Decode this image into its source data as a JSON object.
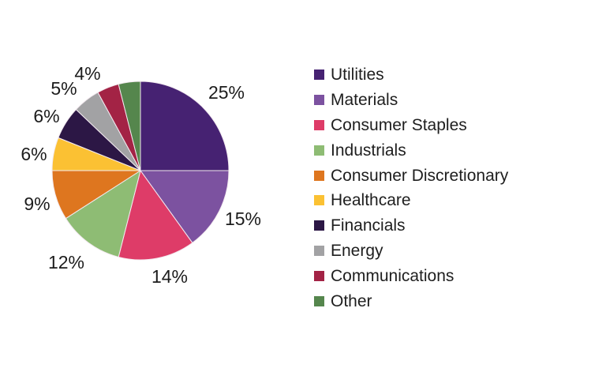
{
  "canvas": {
    "background": "#ffffff"
  },
  "chart_data": {
    "type": "pie",
    "title": "",
    "legend_position": "right",
    "start_angle_deg": 0,
    "direction": "clockwise",
    "label_color": "#1c1c1c",
    "slice_border_color": "#f3eaf0",
    "slices": [
      {
        "label": "Utilities",
        "value": 25,
        "pct_label": "25%",
        "color": "#462272"
      },
      {
        "label": "Materials",
        "value": 15,
        "pct_label": "15%",
        "color": "#7C52A0"
      },
      {
        "label": "Consumer Staples",
        "value": 14,
        "pct_label": "14%",
        "color": "#DE3C68"
      },
      {
        "label": "Industrials",
        "value": 12,
        "pct_label": "12%",
        "color": "#8EBC74"
      },
      {
        "label": "Consumer Discretionary",
        "value": 9,
        "pct_label": "9%",
        "color": "#DE761F"
      },
      {
        "label": "Healthcare",
        "value": 6,
        "pct_label": "6%",
        "color": "#FBC133"
      },
      {
        "label": "Financials",
        "value": 6,
        "pct_label": "6%",
        "color": "#2C1745"
      },
      {
        "label": "Energy",
        "value": 5,
        "pct_label": "5%",
        "color": "#A2A2A4"
      },
      {
        "label": "Communications",
        "value": 4,
        "pct_label": "4%",
        "color": "#A32345"
      },
      {
        "label": "Other",
        "value": 4,
        "pct_label": "",
        "color": "#55864D"
      }
    ]
  }
}
